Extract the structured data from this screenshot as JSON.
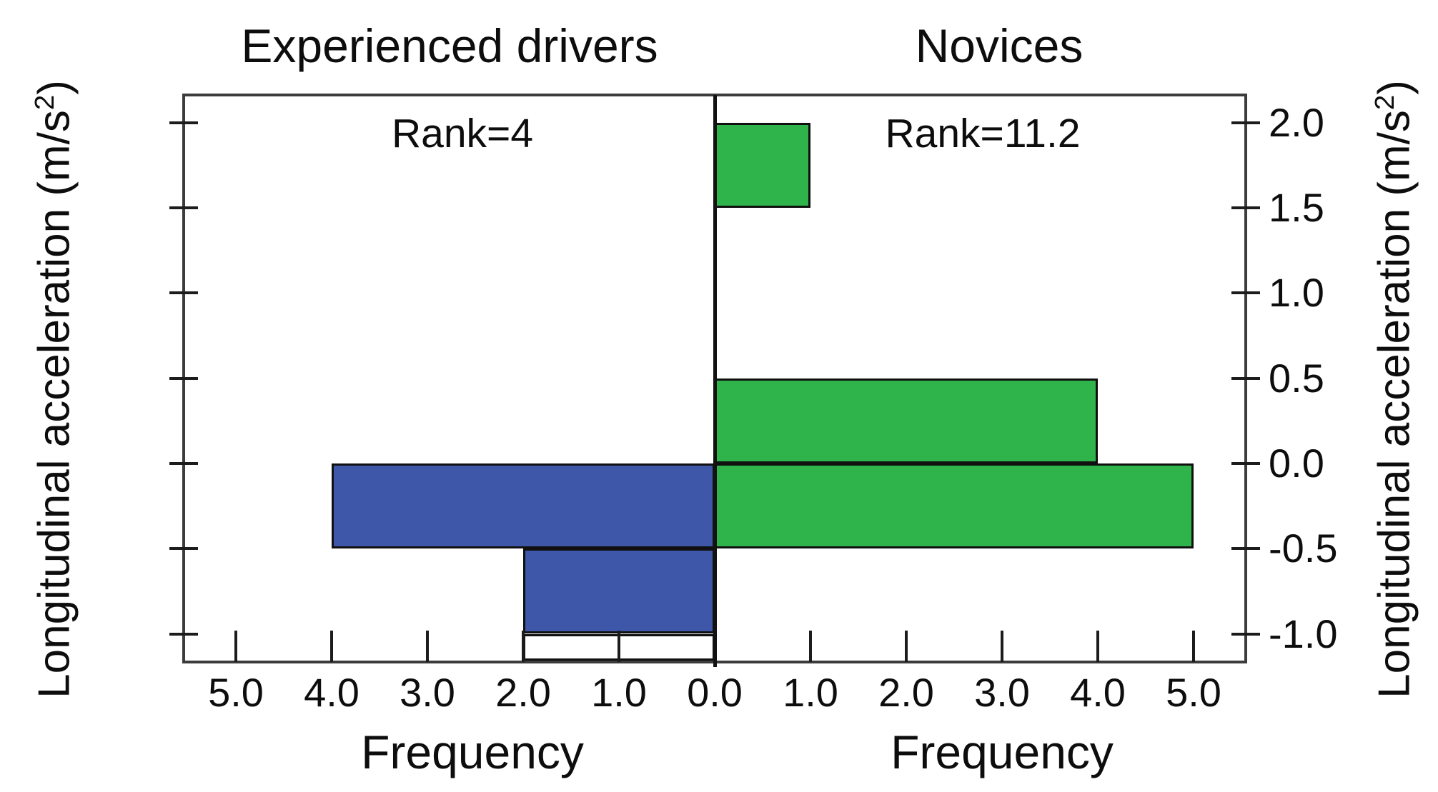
{
  "figure": {
    "background": "#ffffff",
    "text_color": "#0d0d0d",
    "frame_color": "#3c3c3c",
    "left_panel": {
      "title": "Experienced drivers",
      "annotation": "Rank=4",
      "xlabel": "Frequency"
    },
    "right_panel": {
      "title": "Novices",
      "annotation": "Rank=11.2",
      "xlabel": "Frequency"
    },
    "y_axis_label_main": "Longitudinal acceleration (m/s",
    "y_axis_label_sup": "2",
    "y_axis_label_close": ")"
  },
  "chart_data": {
    "type": "bar",
    "subtype": "back-to-back horizontal histogram (population pyramid)",
    "xlabel": "Frequency",
    "ylabel": "Longitudinal acceleration (m/s2)",
    "bin_width": 0.5,
    "ylim": [
      -1.16,
      2.16
    ],
    "xlim_each_side": [
      0,
      5.55
    ],
    "grid": false,
    "y_ticks": [
      2.0,
      1.5,
      1.0,
      0.5,
      0.0,
      -0.5,
      -1.0
    ],
    "x_ticks_left_side": [
      5.0,
      4.0,
      3.0,
      2.0,
      1.0
    ],
    "x_ticks_right_side": [
      1.0,
      2.0,
      3.0,
      4.0,
      5.0
    ],
    "center_tick_label": "0.0",
    "series": [
      {
        "name": "Experienced drivers",
        "side": "left",
        "rank_annotation": "Rank=4",
        "color": "#3E57A8",
        "bins": [
          {
            "accel_from": 0.0,
            "accel_to": -0.5,
            "frequency": 4.0
          },
          {
            "accel_from": -0.5,
            "accel_to": -1.0,
            "frequency": 2.0
          }
        ],
        "clipped_empty_bin": {
          "accel_from": -1.0,
          "frequency": 2.0,
          "fill": "#ffffff"
        }
      },
      {
        "name": "Novices",
        "side": "right",
        "rank_annotation": "Rank=11.2",
        "color": "#2EB44B",
        "bins": [
          {
            "accel_from": 1.5,
            "accel_to": 2.0,
            "frequency": 1.0
          },
          {
            "accel_from": 0.0,
            "accel_to": 0.5,
            "frequency": 4.0
          },
          {
            "accel_from": -0.5,
            "accel_to": 0.0,
            "frequency": 5.0
          }
        ]
      }
    ]
  }
}
